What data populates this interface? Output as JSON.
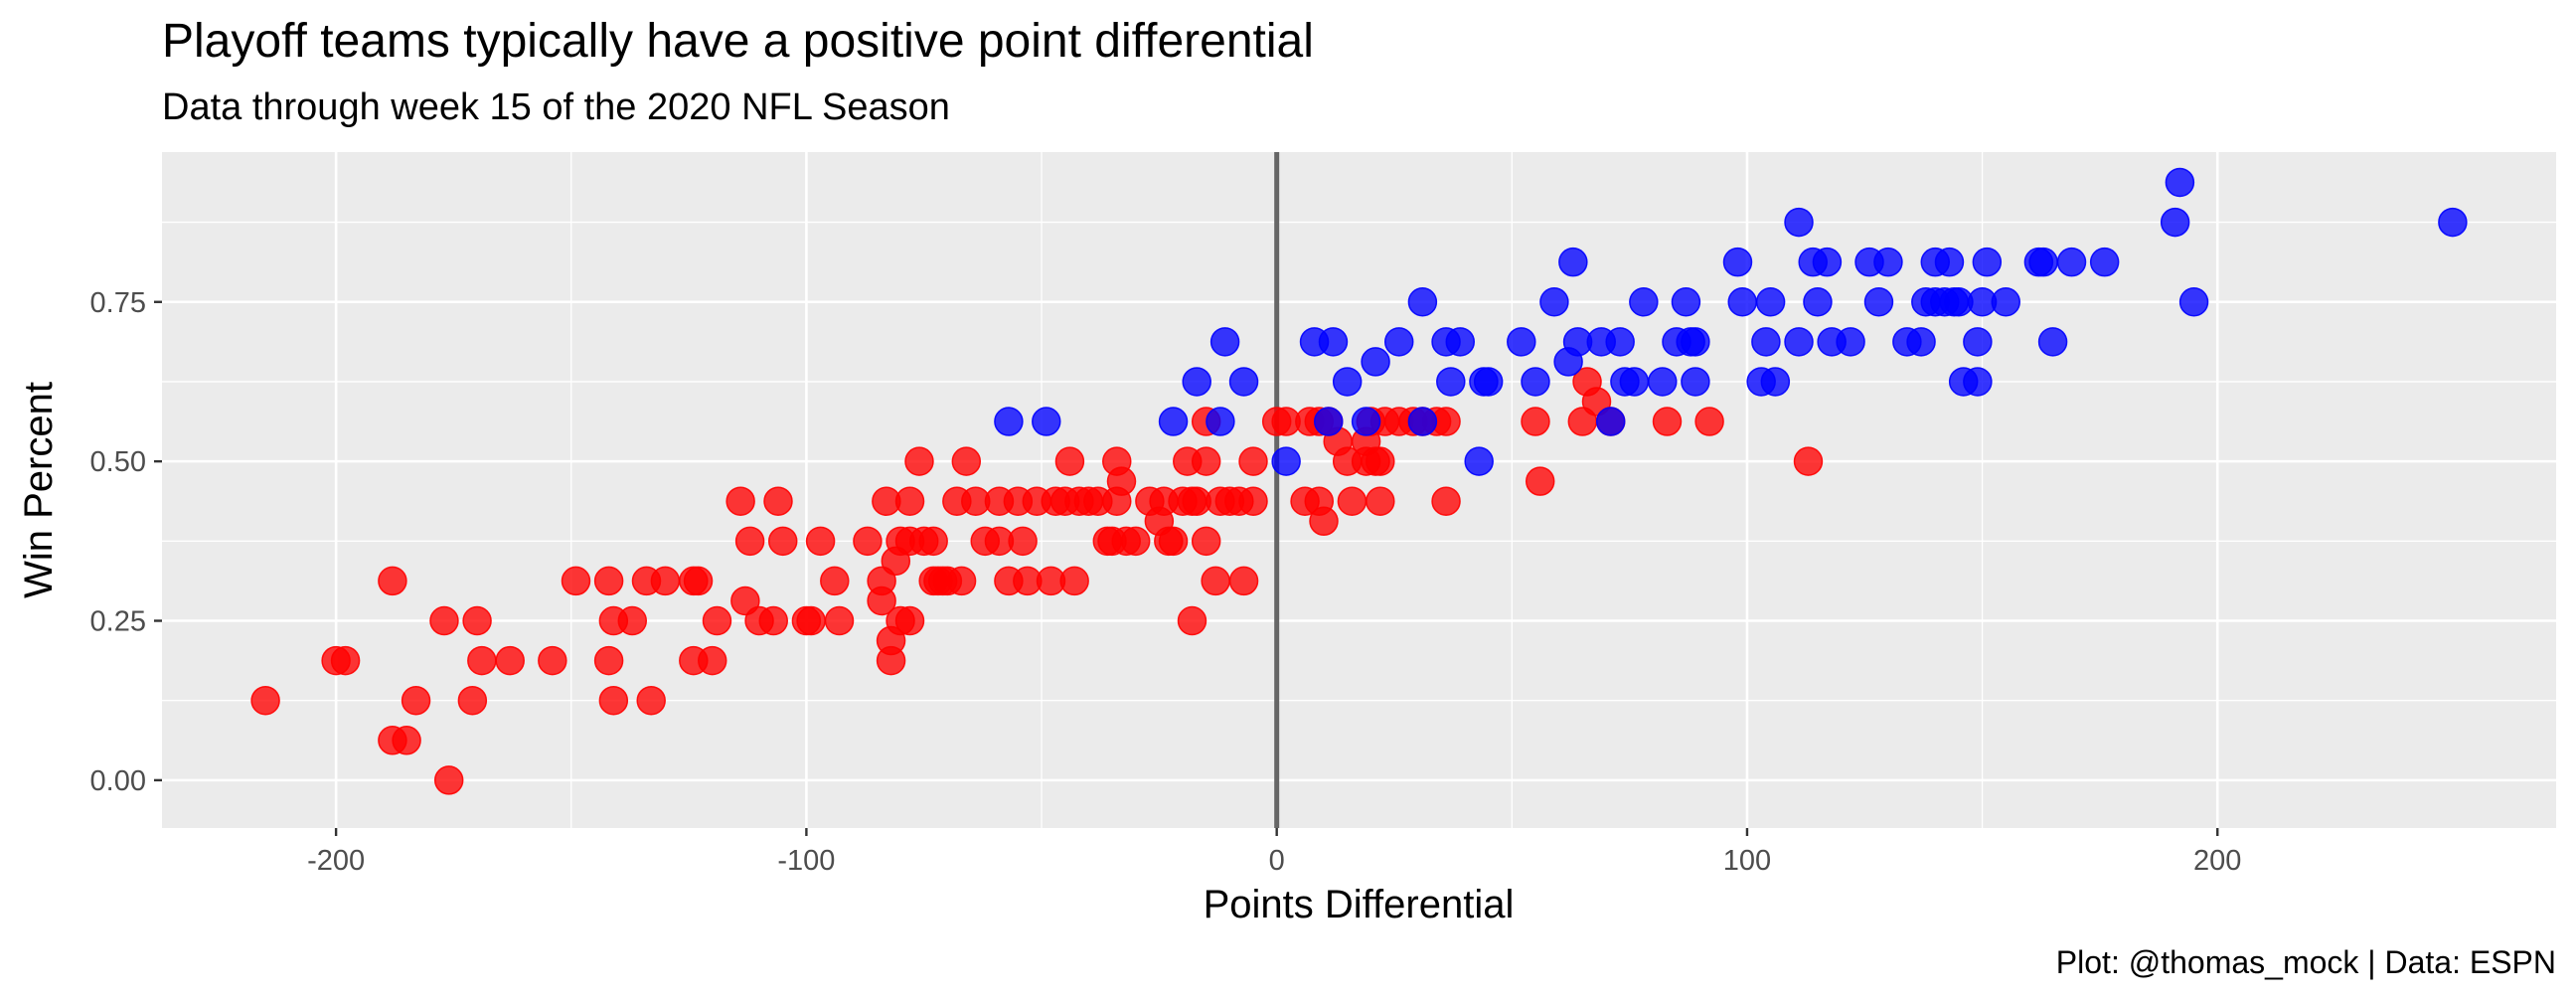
{
  "chart_data": {
    "type": "scatter",
    "title": "Playoff teams typically have a positive point differential",
    "subtitle": "Data through week 15 of the 2020 NFL Season",
    "xlabel": "Points Differential",
    "ylabel": "Win Percent",
    "caption": "Plot: @thomas_mock | Data: ESPN",
    "xlim": [
      -237,
      272
    ],
    "ylim": [
      -0.075,
      0.985
    ],
    "x_ticks": [
      -200,
      -100,
      0,
      100,
      200
    ],
    "x_tick_labels": [
      "-200",
      "-100",
      "0",
      "100",
      "200"
    ],
    "y_ticks": [
      0,
      0.25,
      0.5,
      0.75
    ],
    "y_tick_labels": [
      "0.00",
      "0.25",
      "0.50",
      "0.75"
    ],
    "reference_line_x": 0,
    "grid": true,
    "legend": "none",
    "colors": {
      "panel": "#ebebeb",
      "grid": "#ffffff",
      "reference_line": "#666666",
      "playoff": "#0000ff",
      "non_playoff": "#ff0000"
    },
    "series": [
      {
        "color": "#ff0000",
        "points": [
          [
            -215,
            0.125
          ],
          [
            -200,
            0.1875
          ],
          [
            -198,
            0.1875
          ],
          [
            -188,
            0.3125
          ],
          [
            -188,
            0.0625
          ],
          [
            -185,
            0.0625
          ],
          [
            -183,
            0.125
          ],
          [
            -177,
            0.25
          ],
          [
            -176,
            0
          ],
          [
            -171,
            0.125
          ],
          [
            -170,
            0.25
          ],
          [
            -169,
            0.1875
          ],
          [
            -163,
            0.1875
          ],
          [
            -154,
            0.1875
          ],
          [
            -149,
            0.3125
          ],
          [
            -142,
            0.3125
          ],
          [
            -142,
            0.1875
          ],
          [
            -141,
            0.25
          ],
          [
            -141,
            0.125
          ],
          [
            -137,
            0.25
          ],
          [
            -134,
            0.3125
          ],
          [
            -133,
            0.125
          ],
          [
            -130,
            0.3125
          ],
          [
            -124,
            0.3125
          ],
          [
            -123,
            0.3125
          ],
          [
            -124,
            0.1875
          ],
          [
            -120,
            0.1875
          ],
          [
            -119,
            0.25
          ],
          [
            -114,
            0.4375
          ],
          [
            -113,
            0.28125
          ],
          [
            -112,
            0.375
          ],
          [
            -110,
            0.25
          ],
          [
            -107,
            0.25
          ],
          [
            -106,
            0.4375
          ],
          [
            -105,
            0.375
          ],
          [
            -100,
            0.25
          ],
          [
            -99,
            0.25
          ],
          [
            -97,
            0.375
          ],
          [
            -94,
            0.3125
          ],
          [
            -93,
            0.25
          ],
          [
            -87,
            0.375
          ],
          [
            -84,
            0.3125
          ],
          [
            -84,
            0.28125
          ],
          [
            -83,
            0.4375
          ],
          [
            -82,
            0.1875
          ],
          [
            -82,
            0.21875
          ],
          [
            -81,
            0.34375
          ],
          [
            -80,
            0.375
          ],
          [
            -80,
            0.25
          ],
          [
            -78,
            0.4375
          ],
          [
            -78,
            0.375
          ],
          [
            -78,
            0.25
          ],
          [
            -76,
            0.5
          ],
          [
            -75,
            0.375
          ],
          [
            -73,
            0.3125
          ],
          [
            -73,
            0.375
          ],
          [
            -72,
            0.3125
          ],
          [
            -71,
            0.3125
          ],
          [
            -70,
            0.3125
          ],
          [
            -68,
            0.4375
          ],
          [
            -67,
            0.3125
          ],
          [
            -66,
            0.5
          ],
          [
            -64,
            0.4375
          ],
          [
            -62,
            0.375
          ],
          [
            -59,
            0.375
          ],
          [
            -59,
            0.4375
          ],
          [
            -57,
            0.3125
          ],
          [
            -55,
            0.4375
          ],
          [
            -54,
            0.375
          ],
          [
            -53,
            0.3125
          ],
          [
            -51,
            0.4375
          ],
          [
            -48,
            0.3125
          ],
          [
            -47,
            0.4375
          ],
          [
            -45,
            0.4375
          ],
          [
            -44,
            0.5
          ],
          [
            -43,
            0.3125
          ],
          [
            -42,
            0.4375
          ],
          [
            -40,
            0.4375
          ],
          [
            -38,
            0.4375
          ],
          [
            -36,
            0.375
          ],
          [
            -35,
            0.375
          ],
          [
            -34,
            0.4375
          ],
          [
            -34,
            0.5
          ],
          [
            -33,
            0.46875
          ],
          [
            -32,
            0.375
          ],
          [
            -30,
            0.375
          ],
          [
            -27,
            0.4375
          ],
          [
            -25,
            0.40625
          ],
          [
            -24,
            0.4375
          ],
          [
            -23,
            0.375
          ],
          [
            -22,
            0.375
          ],
          [
            -20,
            0.4375
          ],
          [
            -19,
            0.5
          ],
          [
            -18,
            0.25
          ],
          [
            -18,
            0.4375
          ],
          [
            -17,
            0.4375
          ],
          [
            -15,
            0.5
          ],
          [
            -15,
            0.5625
          ],
          [
            -15,
            0.375
          ],
          [
            -13,
            0.3125
          ],
          [
            -12,
            0.4375
          ],
          [
            -10,
            0.4375
          ],
          [
            -8,
            0.4375
          ],
          [
            -7,
            0.3125
          ],
          [
            -5,
            0.5
          ],
          [
            -5,
            0.4375
          ],
          [
            0,
            0.5625
          ],
          [
            2,
            0.5625
          ],
          [
            6,
            0.4375
          ],
          [
            7,
            0.5625
          ],
          [
            9,
            0.5625
          ],
          [
            9,
            0.4375
          ],
          [
            10,
            0.40625
          ],
          [
            11,
            0.5625
          ],
          [
            13,
            0.53125
          ],
          [
            15,
            0.5
          ],
          [
            16,
            0.4375
          ],
          [
            19,
            0.5
          ],
          [
            19,
            0.53125
          ],
          [
            20,
            0.5625
          ],
          [
            21,
            0.5
          ],
          [
            22,
            0.4375
          ],
          [
            22,
            0.5
          ],
          [
            23,
            0.5625
          ],
          [
            26,
            0.5625
          ],
          [
            29,
            0.5625
          ],
          [
            31,
            0.5625
          ],
          [
            34,
            0.5625
          ],
          [
            36,
            0.5625
          ],
          [
            36,
            0.4375
          ],
          [
            55,
            0.5625
          ],
          [
            56,
            0.46875
          ],
          [
            65,
            0.5625
          ],
          [
            66,
            0.625
          ],
          [
            68,
            0.59375
          ],
          [
            71,
            0.5625
          ],
          [
            83,
            0.5625
          ],
          [
            92,
            0.5625
          ],
          [
            113,
            0.5
          ]
        ]
      },
      {
        "color": "#0000ff",
        "points": [
          [
            -57,
            0.5625
          ],
          [
            -49,
            0.5625
          ],
          [
            -22,
            0.5625
          ],
          [
            -17,
            0.625
          ],
          [
            -12,
            0.5625
          ],
          [
            -11,
            0.6875
          ],
          [
            -7,
            0.625
          ],
          [
            2,
            0.5
          ],
          [
            8,
            0.6875
          ],
          [
            11,
            0.5625
          ],
          [
            12,
            0.6875
          ],
          [
            15,
            0.625
          ],
          [
            19,
            0.5625
          ],
          [
            21,
            0.65625
          ],
          [
            26,
            0.6875
          ],
          [
            31,
            0.5625
          ],
          [
            31,
            0.75
          ],
          [
            36,
            0.6875
          ],
          [
            37,
            0.625
          ],
          [
            39,
            0.6875
          ],
          [
            43,
            0.5
          ],
          [
            44,
            0.625
          ],
          [
            45,
            0.625
          ],
          [
            52,
            0.6875
          ],
          [
            55,
            0.625
          ],
          [
            59,
            0.75
          ],
          [
            62,
            0.65625
          ],
          [
            63,
            0.8125
          ],
          [
            64,
            0.6875
          ],
          [
            69,
            0.6875
          ],
          [
            71,
            0.5625
          ],
          [
            73,
            0.6875
          ],
          [
            74,
            0.625
          ],
          [
            76,
            0.625
          ],
          [
            78,
            0.75
          ],
          [
            82,
            0.625
          ],
          [
            85,
            0.6875
          ],
          [
            87,
            0.75
          ],
          [
            88,
            0.6875
          ],
          [
            89,
            0.6875
          ],
          [
            89,
            0.625
          ],
          [
            98,
            0.8125
          ],
          [
            99,
            0.75
          ],
          [
            103,
            0.625
          ],
          [
            104,
            0.6875
          ],
          [
            105,
            0.75
          ],
          [
            106,
            0.625
          ],
          [
            111,
            0.875
          ],
          [
            111,
            0.6875
          ],
          [
            114,
            0.8125
          ],
          [
            115,
            0.75
          ],
          [
            117,
            0.8125
          ],
          [
            118,
            0.6875
          ],
          [
            122,
            0.6875
          ],
          [
            126,
            0.8125
          ],
          [
            128,
            0.75
          ],
          [
            130,
            0.8125
          ],
          [
            134,
            0.6875
          ],
          [
            137,
            0.6875
          ],
          [
            138,
            0.75
          ],
          [
            140,
            0.8125
          ],
          [
            140,
            0.75
          ],
          [
            142,
            0.75
          ],
          [
            143,
            0.8125
          ],
          [
            144,
            0.75
          ],
          [
            145,
            0.75
          ],
          [
            146,
            0.625
          ],
          [
            149,
            0.625
          ],
          [
            149,
            0.6875
          ],
          [
            150,
            0.75
          ],
          [
            151,
            0.8125
          ],
          [
            155,
            0.75
          ],
          [
            162,
            0.8125
          ],
          [
            163,
            0.8125
          ],
          [
            165,
            0.6875
          ],
          [
            169,
            0.8125
          ],
          [
            176,
            0.8125
          ],
          [
            191,
            0.875
          ],
          [
            192,
            0.9375
          ],
          [
            195,
            0.75
          ],
          [
            250,
            0.875
          ]
        ]
      }
    ]
  }
}
